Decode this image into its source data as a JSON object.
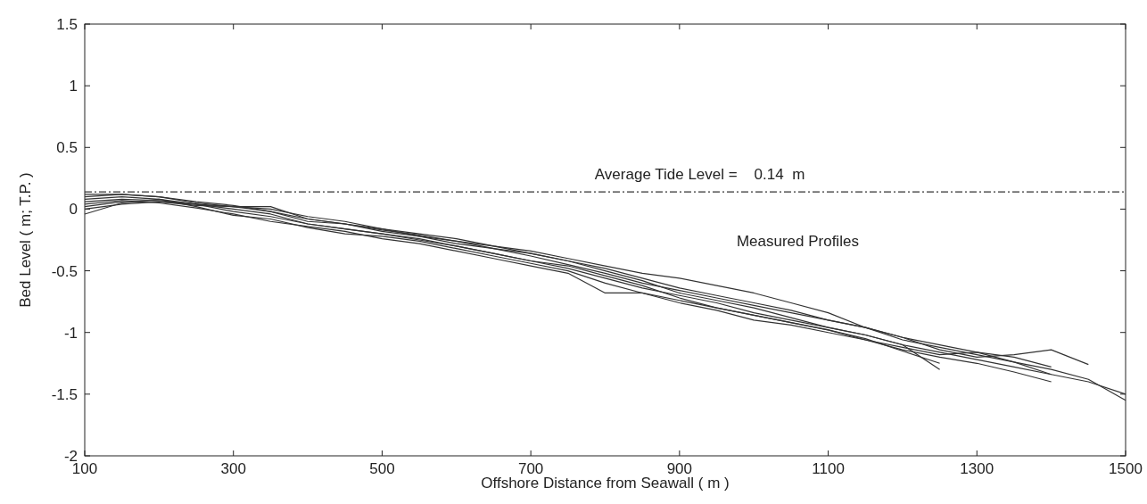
{
  "chart_data": {
    "type": "line",
    "xlabel": "Offshore Distance from Seawall ( m )",
    "ylabel": "Bed Level ( m;  T.P. )",
    "xlim": [
      100,
      1500
    ],
    "ylim": [
      -2,
      1.5
    ],
    "xticks": [
      100,
      300,
      500,
      700,
      900,
      1100,
      1300,
      1500
    ],
    "yticks": [
      -2,
      -1.5,
      -1,
      -0.5,
      0,
      0.5,
      1,
      1.5
    ],
    "grid": false,
    "marker": "none",
    "line_style": "solid",
    "ref_lines": [
      {
        "axis": "y",
        "value": 0.14,
        "label": "Average Tide Level =    0.14  m",
        "line_style": "dashdot",
        "color": "#333333"
      }
    ],
    "annotations": [
      "Measured Profiles"
    ],
    "series": [
      {
        "color": "#333333",
        "x": [
          100,
          150,
          200,
          250,
          300,
          350,
          400,
          450,
          500,
          550,
          600,
          650,
          700,
          750,
          800,
          850,
          900,
          950,
          1000,
          1050,
          1100,
          1150,
          1200,
          1250
        ],
        "values": [
          0.12,
          0.12,
          0.1,
          0.05,
          0.02,
          -0.02,
          -0.1,
          -0.12,
          -0.18,
          -0.22,
          -0.26,
          -0.3,
          -0.36,
          -0.42,
          -0.5,
          -0.58,
          -0.68,
          -0.74,
          -0.8,
          -0.88,
          -0.96,
          -1.02,
          -1.1,
          -1.3
        ]
      },
      {
        "color": "#333333",
        "x": [
          100,
          150,
          200,
          250,
          300,
          350,
          400,
          450,
          500,
          550,
          600,
          650,
          700,
          750,
          800,
          850,
          900,
          950,
          1000,
          1050,
          1100,
          1150,
          1200,
          1250
        ],
        "values": [
          0.08,
          0.1,
          0.08,
          0.04,
          0,
          -0.04,
          -0.12,
          -0.16,
          -0.2,
          -0.24,
          -0.3,
          -0.36,
          -0.42,
          -0.46,
          -0.54,
          -0.62,
          -0.72,
          -0.8,
          -0.86,
          -0.92,
          -0.98,
          -1.05,
          -1.15,
          -1.25
        ]
      },
      {
        "color": "#333333",
        "x": [
          100,
          150,
          200,
          250,
          300,
          350,
          400,
          450,
          500,
          550,
          600,
          650,
          700,
          750,
          800,
          850,
          900,
          950,
          1000,
          1050,
          1100,
          1150,
          1200,
          1250,
          1300,
          1350,
          1400
        ],
        "values": [
          -0.04,
          0.05,
          0.08,
          0.02,
          -0.05,
          -0.08,
          -0.15,
          -0.2,
          -0.22,
          -0.26,
          -0.32,
          -0.38,
          -0.44,
          -0.5,
          -0.6,
          -0.68,
          -0.76,
          -0.82,
          -0.9,
          -0.94,
          -1,
          -1.06,
          -1.14,
          -1.2,
          -1.25,
          -1.32,
          -1.4
        ]
      },
      {
        "color": "#333333",
        "x": [
          100,
          150,
          200,
          250,
          300,
          350,
          400,
          450,
          500,
          550,
          600,
          650,
          700,
          750,
          800,
          850,
          900,
          950,
          1000,
          1050,
          1100,
          1150,
          1200,
          1250,
          1300,
          1350,
          1400
        ],
        "values": [
          0.02,
          0.06,
          0.06,
          0.03,
          0.02,
          0.02,
          -0.08,
          -0.12,
          -0.16,
          -0.2,
          -0.24,
          -0.3,
          -0.34,
          -0.4,
          -0.46,
          -0.52,
          -0.56,
          -0.62,
          -0.68,
          -0.76,
          -0.84,
          -0.96,
          -1.06,
          -1.12,
          -1.18,
          -1.24,
          -1.34
        ]
      },
      {
        "color": "#333333",
        "x": [
          100,
          150,
          200,
          250,
          300,
          350,
          400,
          450,
          500,
          550,
          600,
          650,
          700,
          750,
          800,
          850,
          900,
          950,
          1000,
          1050,
          1100,
          1150,
          1200,
          1250,
          1300,
          1350,
          1400,
          1450,
          1500
        ],
        "values": [
          0.1,
          0.12,
          0.1,
          0.06,
          0.03,
          -0.02,
          -0.08,
          -0.12,
          -0.17,
          -0.21,
          -0.26,
          -0.32,
          -0.38,
          -0.45,
          -0.52,
          -0.6,
          -0.66,
          -0.72,
          -0.78,
          -0.84,
          -0.9,
          -0.96,
          -1.04,
          -1.1,
          -1.16,
          -1.24,
          -1.3,
          -1.38,
          -1.55
        ]
      },
      {
        "color": "#333333",
        "x": [
          100,
          150,
          200,
          250,
          300,
          350,
          400,
          450,
          500,
          550,
          600,
          650,
          700,
          750,
          800,
          850,
          900,
          950,
          1000,
          1050,
          1100,
          1150,
          1200,
          1250,
          1300,
          1350,
          1400,
          1450
        ],
        "values": [
          0,
          0.04,
          0.06,
          0.04,
          0.02,
          0,
          -0.06,
          -0.1,
          -0.16,
          -0.22,
          -0.28,
          -0.32,
          -0.36,
          -0.42,
          -0.48,
          -0.56,
          -0.64,
          -0.7,
          -0.76,
          -0.82,
          -0.9,
          -0.96,
          -1.04,
          -1.14,
          -1.2,
          -1.18,
          -1.14,
          -1.26
        ]
      },
      {
        "color": "#333333",
        "x": [
          100,
          150,
          200,
          250,
          300,
          350,
          400,
          450,
          500,
          550,
          600,
          650,
          700,
          750,
          800,
          850,
          900,
          950,
          1000,
          1050,
          1100,
          1150,
          1200,
          1250,
          1300,
          1350,
          1400,
          1450,
          1500
        ],
        "values": [
          0.06,
          0.08,
          0.07,
          0.04,
          -0.02,
          -0.06,
          -0.12,
          -0.16,
          -0.2,
          -0.25,
          -0.3,
          -0.36,
          -0.42,
          -0.48,
          -0.56,
          -0.64,
          -0.7,
          -0.76,
          -0.84,
          -0.9,
          -0.96,
          -1.02,
          -1.1,
          -1.16,
          -1.22,
          -1.28,
          -1.34,
          -1.4,
          -1.5
        ]
      },
      {
        "color": "#333333",
        "x": [
          100,
          150,
          200,
          250,
          300,
          350,
          400,
          450,
          500,
          550,
          600,
          650,
          700,
          750,
          800,
          850,
          900,
          950,
          1000,
          1050,
          1100,
          1150,
          1200,
          1250,
          1300,
          1350,
          1400
        ],
        "values": [
          0.04,
          0.07,
          0.05,
          0.01,
          -0.04,
          -0.1,
          -0.14,
          -0.18,
          -0.24,
          -0.28,
          -0.34,
          -0.4,
          -0.46,
          -0.52,
          -0.68,
          -0.68,
          -0.74,
          -0.8,
          -0.86,
          -0.92,
          -0.98,
          -1.06,
          -1.12,
          -1.18,
          -1.16,
          -1.2,
          -1.28
        ]
      }
    ]
  }
}
